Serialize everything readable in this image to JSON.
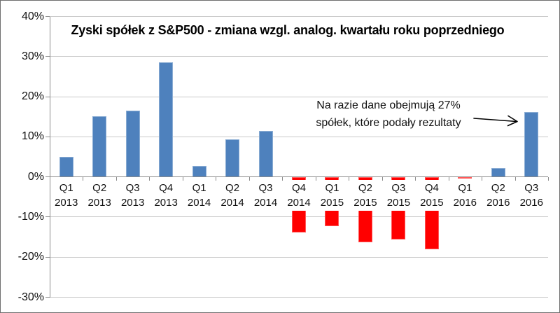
{
  "window": {
    "background": "#FFFFFF",
    "border_color": "#6F6F6F"
  },
  "chart_data": {
    "type": "bar",
    "title": "Zyski spółek z S&P500 - zmiana wzgl. analog. kwartału roku poprzedniego",
    "xlabel": "",
    "ylabel": "",
    "ylim": [
      -30,
      40
    ],
    "grid": true,
    "legend": "none",
    "y_ticks": [
      {
        "value": 40,
        "label": "40%"
      },
      {
        "value": 30,
        "label": "30%"
      },
      {
        "value": 20,
        "label": "20%"
      },
      {
        "value": 10,
        "label": "10%"
      },
      {
        "value": 0,
        "label": "0%"
      },
      {
        "value": -10,
        "label": "-10%"
      },
      {
        "value": -20,
        "label": "-20%"
      },
      {
        "value": -30,
        "label": "-30%"
      }
    ],
    "categories": [
      {
        "quarter": "Q1",
        "year": "2013"
      },
      {
        "quarter": "Q2",
        "year": "2013"
      },
      {
        "quarter": "Q3",
        "year": "2013"
      },
      {
        "quarter": "Q4",
        "year": "2013"
      },
      {
        "quarter": "Q1",
        "year": "2014"
      },
      {
        "quarter": "Q2",
        "year": "2014"
      },
      {
        "quarter": "Q3",
        "year": "2014"
      },
      {
        "quarter": "Q4",
        "year": "2014"
      },
      {
        "quarter": "Q1",
        "year": "2015"
      },
      {
        "quarter": "Q2",
        "year": "2015"
      },
      {
        "quarter": "Q3",
        "year": "2015"
      },
      {
        "quarter": "Q4",
        "year": "2015"
      },
      {
        "quarter": "Q1",
        "year": "2016"
      },
      {
        "quarter": "Q2",
        "year": "2016"
      },
      {
        "quarter": "Q3",
        "year": "2016"
      }
    ],
    "values": [
      5.0,
      15.2,
      16.5,
      28.5,
      2.7,
      9.3,
      11.5,
      -13.8,
      -12.2,
      -16.2,
      -15.5,
      -18.0,
      -0.4,
      2.2,
      16.2
    ],
    "bar_colors": {
      "positive": "#4E81BD",
      "negative": "#FF0000"
    },
    "gridline_color": "#C9C9C9",
    "axis_color": "#8C8C8C",
    "annotation": {
      "line1": "Na razie dane obejmują 27%",
      "line2": "spółek, które podały rezultaty",
      "arrow_points_to": "Q3 2016"
    }
  }
}
